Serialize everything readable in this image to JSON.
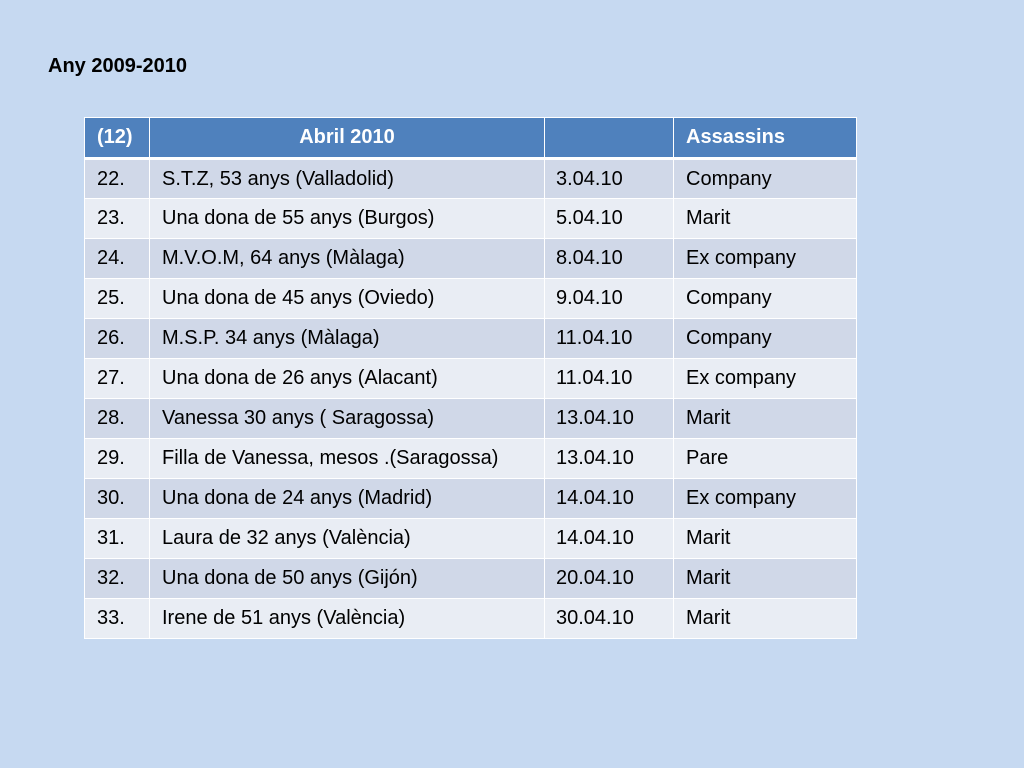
{
  "title": "Any 2009-2010",
  "table": {
    "headers": [
      "(12)",
      "Abril 2010",
      "",
      "Assassins"
    ],
    "rows": [
      {
        "num": "22.",
        "victim": "S.T.Z, 53 anys (Valladolid)",
        "date": " 3.04.10",
        "killer": "Company"
      },
      {
        "num": "23.",
        "victim": "Una dona de 55 anys (Burgos)",
        "date": " 5.04.10",
        "killer": "Marit"
      },
      {
        "num": "24.",
        "victim": "M.V.O.M, 64 anys (Màlaga)",
        "date": " 8.04.10",
        "killer": "Ex company"
      },
      {
        "num": "25.",
        "victim": "Una dona de 45 anys (Oviedo)",
        "date": " 9.04.10",
        "killer": "Company"
      },
      {
        "num": "26.",
        "victim": "M.S.P. 34 anys (Màlaga)",
        "date": "11.04.10",
        "killer": "Company"
      },
      {
        "num": "27.",
        "victim": "Una dona de 26 anys (Alacant)",
        "date": "11.04.10",
        "killer": "Ex company"
      },
      {
        "num": "28.",
        "victim": "Vanessa 30 anys ( Saragossa)",
        "date": "13.04.10",
        "killer": "Marit"
      },
      {
        "num": "29.",
        "victim": "Filla de Vanessa, mesos .(Saragossa)",
        "date": "13.04.10",
        "killer": "Pare"
      },
      {
        "num": "30.",
        "victim": "Una dona de 24 anys (Madrid)",
        "date": "14.04.10",
        "killer": "Ex company"
      },
      {
        "num": "31.",
        "victim": "Laura de 32 anys (València)",
        "date": "14.04.10",
        "killer": "Marit"
      },
      {
        "num": "32.",
        "victim": "Una dona de 50 anys (Gijón)",
        "date": "20.04.10",
        "killer": "Marit"
      },
      {
        "num": "33.",
        "victim": "Irene de 51 anys (València)",
        "date": "30.04.10",
        "killer": "Marit"
      }
    ]
  }
}
